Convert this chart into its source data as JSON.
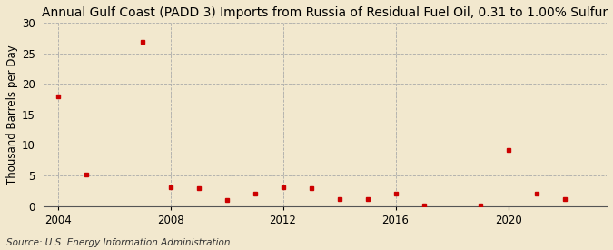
{
  "title": "Annual Gulf Coast (PADD 3) Imports from Russia of Residual Fuel Oil, 0.31 to 1.00% Sulfur",
  "ylabel": "Thousand Barrels per Day",
  "source": "Source: U.S. Energy Information Administration",
  "background_color": "#f2e8ce",
  "marker_color": "#cc0000",
  "years": [
    2004,
    2005,
    2007,
    2008,
    2009,
    2010,
    2011,
    2012,
    2013,
    2014,
    2015,
    2016,
    2017,
    2019,
    2020,
    2021,
    2022
  ],
  "values": [
    18.0,
    5.1,
    26.9,
    3.1,
    3.0,
    1.0,
    2.0,
    3.1,
    3.0,
    1.1,
    1.1,
    2.0,
    0.1,
    0.1,
    9.2,
    2.0,
    1.1
  ],
  "xlim": [
    2003.5,
    2023.5
  ],
  "ylim": [
    0,
    30
  ],
  "yticks": [
    0,
    5,
    10,
    15,
    20,
    25,
    30
  ],
  "xticks": [
    2004,
    2008,
    2012,
    2016,
    2020
  ],
  "hgrid_color": "#aaaaaa",
  "vgrid_color": "#aaaaaa",
  "title_fontsize": 10,
  "tick_fontsize": 8.5,
  "ylabel_fontsize": 8.5,
  "source_fontsize": 7.5
}
